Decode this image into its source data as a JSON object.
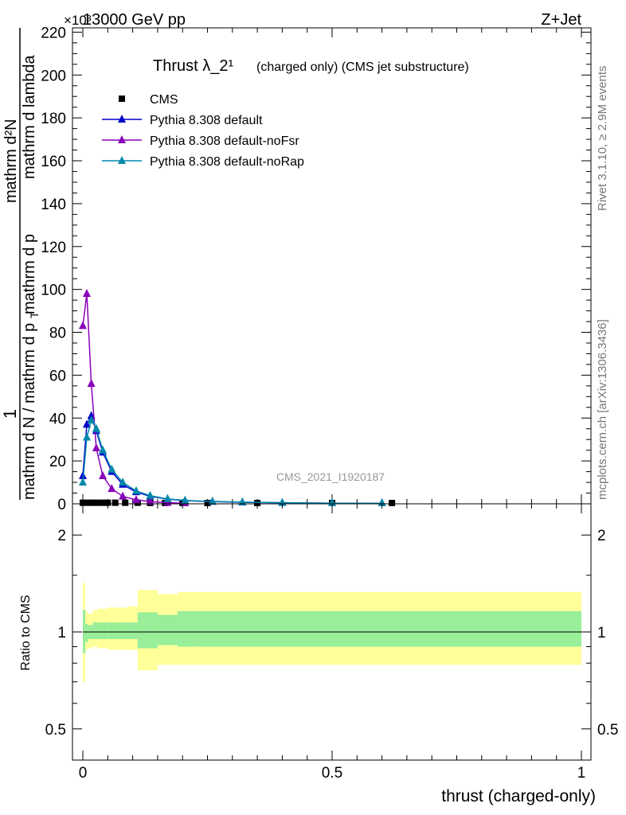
{
  "header": {
    "energy_label": "13000 GeV pp",
    "process_label": "Z+Jet",
    "multiplier_label": "×10³"
  },
  "side_labels": {
    "rivet": "Rivet 3.1.10, ≥ 2.9M events",
    "mcplots": "mcplots.cern.ch [arXiv:1306.3436]"
  },
  "ylabel_main": {
    "one": "1",
    "denominator": "mathrm d N / mathrm d p",
    "subscript": "T",
    "numerator": "mathrm d²N",
    "numerator_tail": "mathrm d p",
    "numerator_tail2": "mathrm d lambda"
  },
  "chart_data": [
    {
      "type": "line",
      "title": "Thrust λ_2¹",
      "subtitle": "(charged only) (CMS jet substructure)",
      "analysis_id": "CMS_2021_I1920187",
      "xlabel": "thrust (charged-only)",
      "ylabel": "1/(dN/dpT) d²N/(dpT dλ)",
      "xlim": [
        -0.02,
        1.02
      ],
      "ylim": [
        0,
        222
      ],
      "y_scale_note": "×10³",
      "y_ticks": [
        0,
        20,
        40,
        60,
        80,
        100,
        120,
        140,
        160,
        180,
        200,
        220
      ],
      "legend_position": "top-left",
      "series": [
        {
          "name": "CMS",
          "color": "#000000",
          "marker": "square",
          "x": [
            0.0,
            0.01,
            0.02,
            0.03,
            0.04,
            0.05,
            0.065,
            0.085,
            0.11,
            0.135,
            0.165,
            0.2,
            0.25,
            0.35,
            0.5,
            0.62
          ],
          "y": [
            0.5,
            0.5,
            0.5,
            0.5,
            0.5,
            0.5,
            0.5,
            0.5,
            0.5,
            0.4,
            0.3,
            0.2,
            0.15,
            0.1,
            0.05,
            0.3
          ]
        },
        {
          "name": "Pythia 8.308 default",
          "color": "#0000cc",
          "marker": "triangle",
          "x": [
            0.0,
            0.008,
            0.017,
            0.027,
            0.04,
            0.058,
            0.08,
            0.107,
            0.135,
            0.17,
            0.205,
            0.26,
            0.32,
            0.4,
            0.5,
            0.6
          ],
          "y": [
            13,
            37,
            41,
            34,
            24,
            15,
            9,
            5.5,
            3.5,
            2.2,
            1.5,
            1.0,
            0.7,
            0.5,
            0.3,
            0.2
          ]
        },
        {
          "name": "Pythia 8.308 default-noFsr",
          "color": "#8800bb",
          "marker": "triangle",
          "x": [
            0.0,
            0.008,
            0.017,
            0.027,
            0.04,
            0.058,
            0.08,
            0.107,
            0.135,
            0.17,
            0.205
          ],
          "y": [
            83,
            98,
            56,
            26,
            13,
            7,
            3.5,
            1.8,
            1.0,
            0.5,
            0.3
          ]
        },
        {
          "name": "Pythia 8.308 default-noRap",
          "color": "#0088aa",
          "marker": "triangle",
          "x": [
            0.0,
            0.008,
            0.017,
            0.027,
            0.04,
            0.058,
            0.08,
            0.107,
            0.135,
            0.17,
            0.205,
            0.26,
            0.32,
            0.4,
            0.5,
            0.6
          ],
          "y": [
            10,
            31,
            39,
            35,
            25,
            16,
            10,
            6,
            3.8,
            2.3,
            1.6,
            1.1,
            0.8,
            0.5,
            0.3,
            0.2
          ]
        }
      ]
    },
    {
      "type": "area",
      "ylabel": "Ratio to CMS",
      "xlabel": "thrust (charged-only)",
      "xlim": [
        -0.02,
        1.02
      ],
      "ylim": [
        0.4,
        2.5
      ],
      "y_scale": "log",
      "y_ticks": [
        0.5,
        1,
        2
      ],
      "x_ticks": [
        0,
        0.5,
        1
      ],
      "bin_edges": [
        0.0,
        0.005,
        0.01,
        0.02,
        0.03,
        0.05,
        0.07,
        0.09,
        0.11,
        0.15,
        0.19,
        0.23,
        1.0
      ],
      "band_inner": {
        "color": "#99ee99",
        "low": [
          0.86,
          0.93,
          0.95,
          0.95,
          0.95,
          0.95,
          0.95,
          0.95,
          0.89,
          0.91,
          0.9,
          0.9
        ],
        "high": [
          1.17,
          1.06,
          1.05,
          1.07,
          1.07,
          1.07,
          1.07,
          1.07,
          1.15,
          1.13,
          1.16,
          1.16
        ]
      },
      "band_outer": {
        "color": "#ffff99",
        "low": [
          0.7,
          0.88,
          0.89,
          0.9,
          0.89,
          0.88,
          0.88,
          0.88,
          0.76,
          0.79,
          0.79,
          0.79
        ],
        "high": [
          1.42,
          1.16,
          1.14,
          1.17,
          1.18,
          1.19,
          1.19,
          1.2,
          1.35,
          1.31,
          1.33,
          1.33
        ]
      },
      "reference_line": 1
    }
  ]
}
